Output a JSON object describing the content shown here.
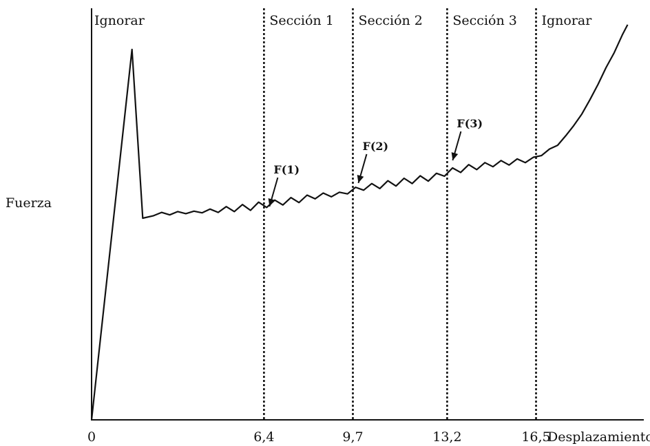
{
  "chart_data": {
    "type": "line",
    "title": "",
    "xlabel": "Desplazamiento",
    "ylabel": "Fuerza",
    "xlim": [
      0,
      20.5
    ],
    "ylim": [
      0,
      100
    ],
    "grid": false,
    "x_ticks": [
      {
        "value": 0,
        "label": "0"
      },
      {
        "value": 6.4,
        "label": "6,4"
      },
      {
        "value": 9.7,
        "label": "9,7"
      },
      {
        "value": 13.2,
        "label": "13,2"
      },
      {
        "value": 16.5,
        "label": "16,5"
      }
    ],
    "section_dividers": [
      6.4,
      9.7,
      13.2,
      16.5
    ],
    "sections": [
      {
        "label": "Ignorar",
        "from": 0,
        "to": 6.4
      },
      {
        "label": "Sección 1",
        "from": 6.4,
        "to": 9.7
      },
      {
        "label": "Sección 2",
        "from": 9.7,
        "to": 13.2
      },
      {
        "label": "Sección 3",
        "from": 13.2,
        "to": 16.5
      },
      {
        "label": "Ignorar",
        "from": 16.5,
        "to": 20.5
      }
    ],
    "annotations": [
      {
        "label": "F(1)",
        "x": 6.4,
        "y": 50.5
      },
      {
        "label": "F(2)",
        "x": 9.7,
        "y": 56.2
      },
      {
        "label": "F(3)",
        "x": 13.2,
        "y": 61.7
      }
    ],
    "series": [
      {
        "points": [
          [
            0,
            0
          ],
          [
            1.5,
            90
          ],
          [
            1.9,
            49
          ],
          [
            2.3,
            49.6
          ],
          [
            2.6,
            50.4
          ],
          [
            2.9,
            49.8
          ],
          [
            3.2,
            50.6
          ],
          [
            3.5,
            50.1
          ],
          [
            3.8,
            50.7
          ],
          [
            4.1,
            50.3
          ],
          [
            4.4,
            51.2
          ],
          [
            4.7,
            50.4
          ],
          [
            5.0,
            51.8
          ],
          [
            5.3,
            50.6
          ],
          [
            5.6,
            52.3
          ],
          [
            5.9,
            50.9
          ],
          [
            6.2,
            52.9
          ],
          [
            6.5,
            51.6
          ],
          [
            6.8,
            53.4
          ],
          [
            7.1,
            52.2
          ],
          [
            7.4,
            54.0
          ],
          [
            7.7,
            52.8
          ],
          [
            8.0,
            54.6
          ],
          [
            8.3,
            53.7
          ],
          [
            8.6,
            55.1
          ],
          [
            8.9,
            54.2
          ],
          [
            9.2,
            55.3
          ],
          [
            9.5,
            54.9
          ],
          [
            9.8,
            56.5
          ],
          [
            10.1,
            55.8
          ],
          [
            10.4,
            57.4
          ],
          [
            10.7,
            56.2
          ],
          [
            11.0,
            58.1
          ],
          [
            11.3,
            56.8
          ],
          [
            11.6,
            58.7
          ],
          [
            11.9,
            57.4
          ],
          [
            12.2,
            59.3
          ],
          [
            12.5,
            58.0
          ],
          [
            12.8,
            59.9
          ],
          [
            13.1,
            59.2
          ],
          [
            13.4,
            61.2
          ],
          [
            13.7,
            60.1
          ],
          [
            14.0,
            62.0
          ],
          [
            14.3,
            60.8
          ],
          [
            14.6,
            62.5
          ],
          [
            14.9,
            61.5
          ],
          [
            15.2,
            63.0
          ],
          [
            15.5,
            61.9
          ],
          [
            15.8,
            63.4
          ],
          [
            16.1,
            62.5
          ],
          [
            16.4,
            63.8
          ],
          [
            16.7,
            64.2
          ],
          [
            17.0,
            65.8
          ],
          [
            17.3,
            66.7
          ],
          [
            17.6,
            69.0
          ],
          [
            17.9,
            71.5
          ],
          [
            18.2,
            74.3
          ],
          [
            18.5,
            77.8
          ],
          [
            18.8,
            81.5
          ],
          [
            19.1,
            85.6
          ],
          [
            19.4,
            89.2
          ],
          [
            19.7,
            93.5
          ],
          [
            19.9,
            96
          ]
        ]
      }
    ]
  }
}
